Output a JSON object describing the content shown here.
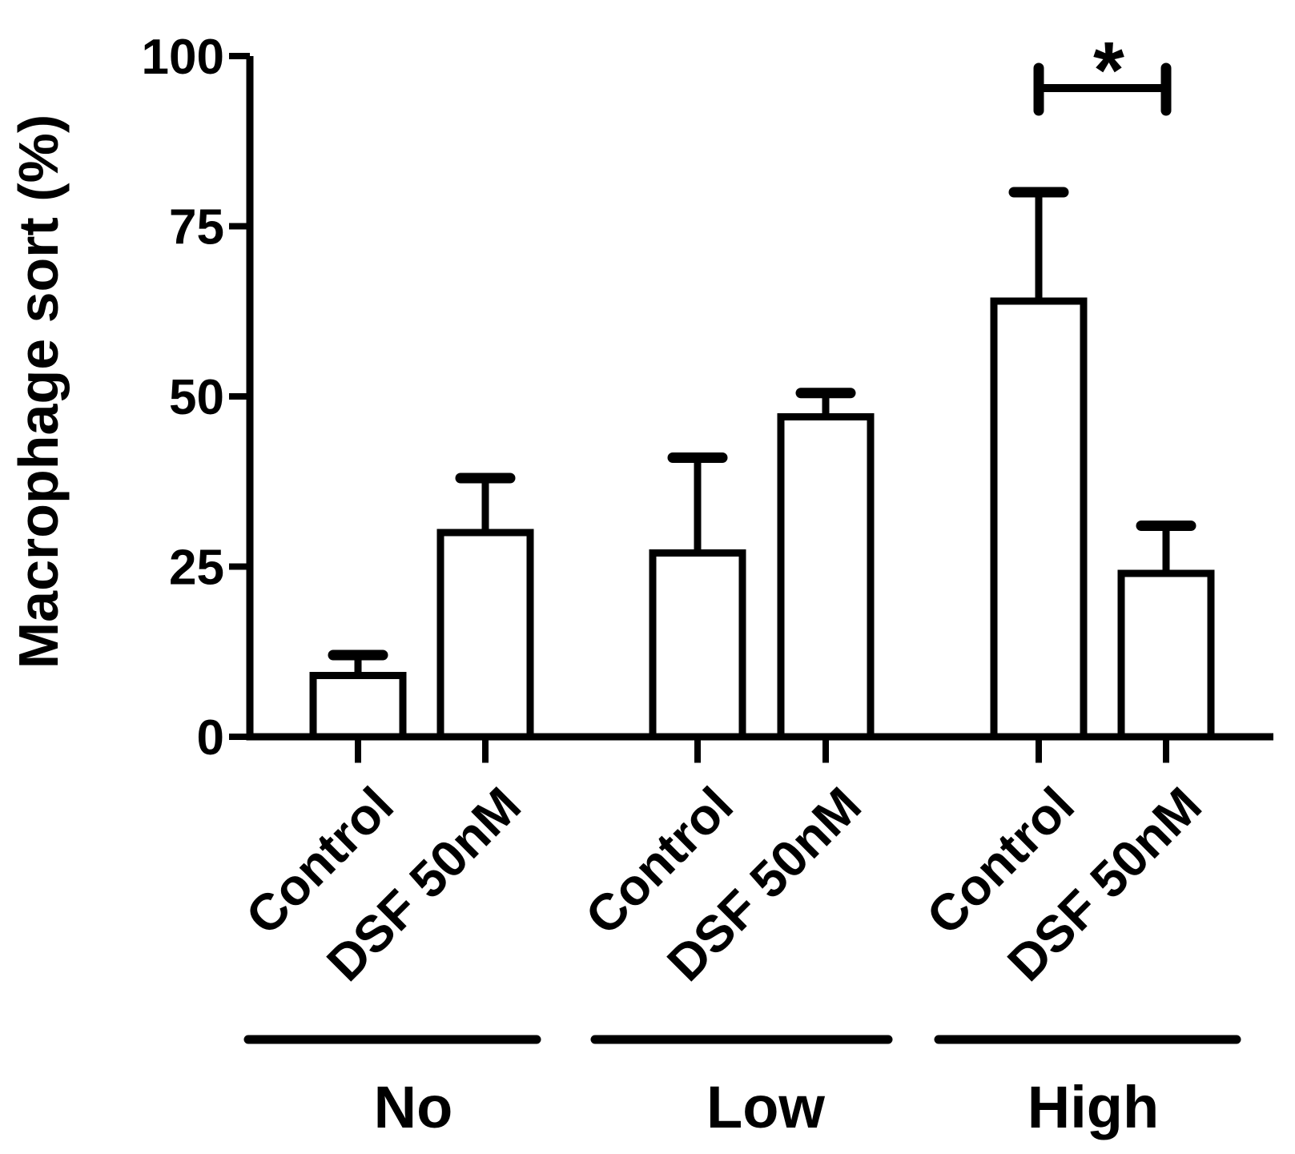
{
  "figure": {
    "background": "#ffffff",
    "ink": "#000000"
  },
  "chart_data": {
    "type": "bar",
    "title": "",
    "ylabel": "Macrophage sort (%)",
    "xlabel": "",
    "ylim": [
      0,
      100
    ],
    "yticks": [
      0,
      25,
      50,
      75,
      100
    ],
    "grid": false,
    "legend": "none",
    "bar_fill": "#ffffff",
    "bar_outline": "#000000",
    "error_bars": "upper only, with caps",
    "groups": [
      {
        "label": "No",
        "bars": [
          {
            "label": "Control",
            "value": 9,
            "error_up": 3
          },
          {
            "label": "DSF 50nM",
            "value": 30,
            "error_up": 8
          }
        ]
      },
      {
        "label": "Low",
        "bars": [
          {
            "label": "Control",
            "value": 27,
            "error_up": 14
          },
          {
            "label": "DSF 50nM",
            "value": 47,
            "error_up": 3.5
          }
        ]
      },
      {
        "label": "High",
        "bars": [
          {
            "label": "Control",
            "value": 64,
            "error_up": 16
          },
          {
            "label": "DSF 50nM",
            "value": 24,
            "error_up": 7
          }
        ]
      }
    ],
    "categories": [
      "Control",
      "DSF 50nM",
      "Control",
      "DSF 50nM",
      "Control",
      "DSF 50nM"
    ],
    "values": [
      9,
      30,
      27,
      47,
      64,
      24
    ],
    "error_up": [
      3,
      8,
      14,
      3.5,
      16,
      7
    ],
    "significance": {
      "label": "*",
      "between_group": "High",
      "between_bars": [
        "Control",
        "DSF 50nM"
      ]
    }
  }
}
